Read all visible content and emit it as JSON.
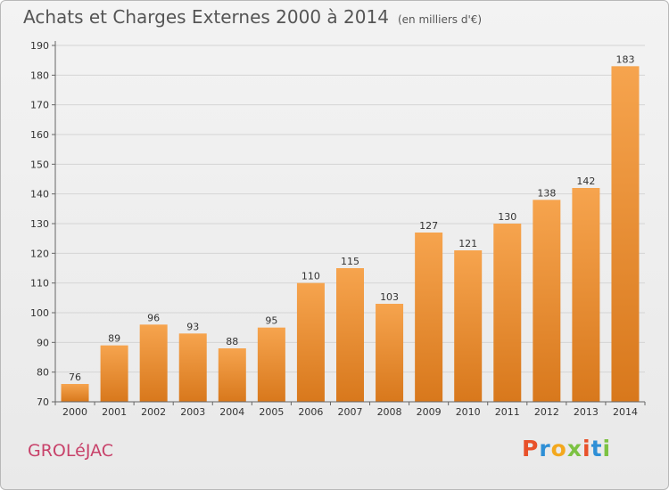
{
  "title": "Achats et Charges Externes 2000 à 2014",
  "subtitle": "(en milliers d'€)",
  "commune": "GROLéJAC",
  "logo_text": "Proxiti",
  "colors": {
    "bar_top": "#f6a44e",
    "bar_bottom": "#d8781c",
    "commune": "#c8426a",
    "logo": [
      "#e8512a",
      "#2e8fd6",
      "#f3a81e",
      "#7cc242",
      "#e8512a",
      "#2e8fd6",
      "#7cc242"
    ]
  },
  "chart_data": {
    "type": "bar",
    "title": "Achats et Charges Externes 2000 à 2014",
    "subtitle": "(en milliers d'€)",
    "categories": [
      "2000",
      "2001",
      "2002",
      "2003",
      "2004",
      "2005",
      "2006",
      "2007",
      "2008",
      "2009",
      "2010",
      "2011",
      "2012",
      "2013",
      "2014"
    ],
    "values": [
      76,
      89,
      96,
      93,
      88,
      95,
      110,
      115,
      103,
      127,
      121,
      130,
      138,
      142,
      183
    ],
    "ylim": [
      70,
      190
    ],
    "yticks": [
      70,
      80,
      90,
      100,
      110,
      120,
      130,
      140,
      150,
      160,
      170,
      180,
      190
    ],
    "grid": true,
    "data_labels": true
  }
}
